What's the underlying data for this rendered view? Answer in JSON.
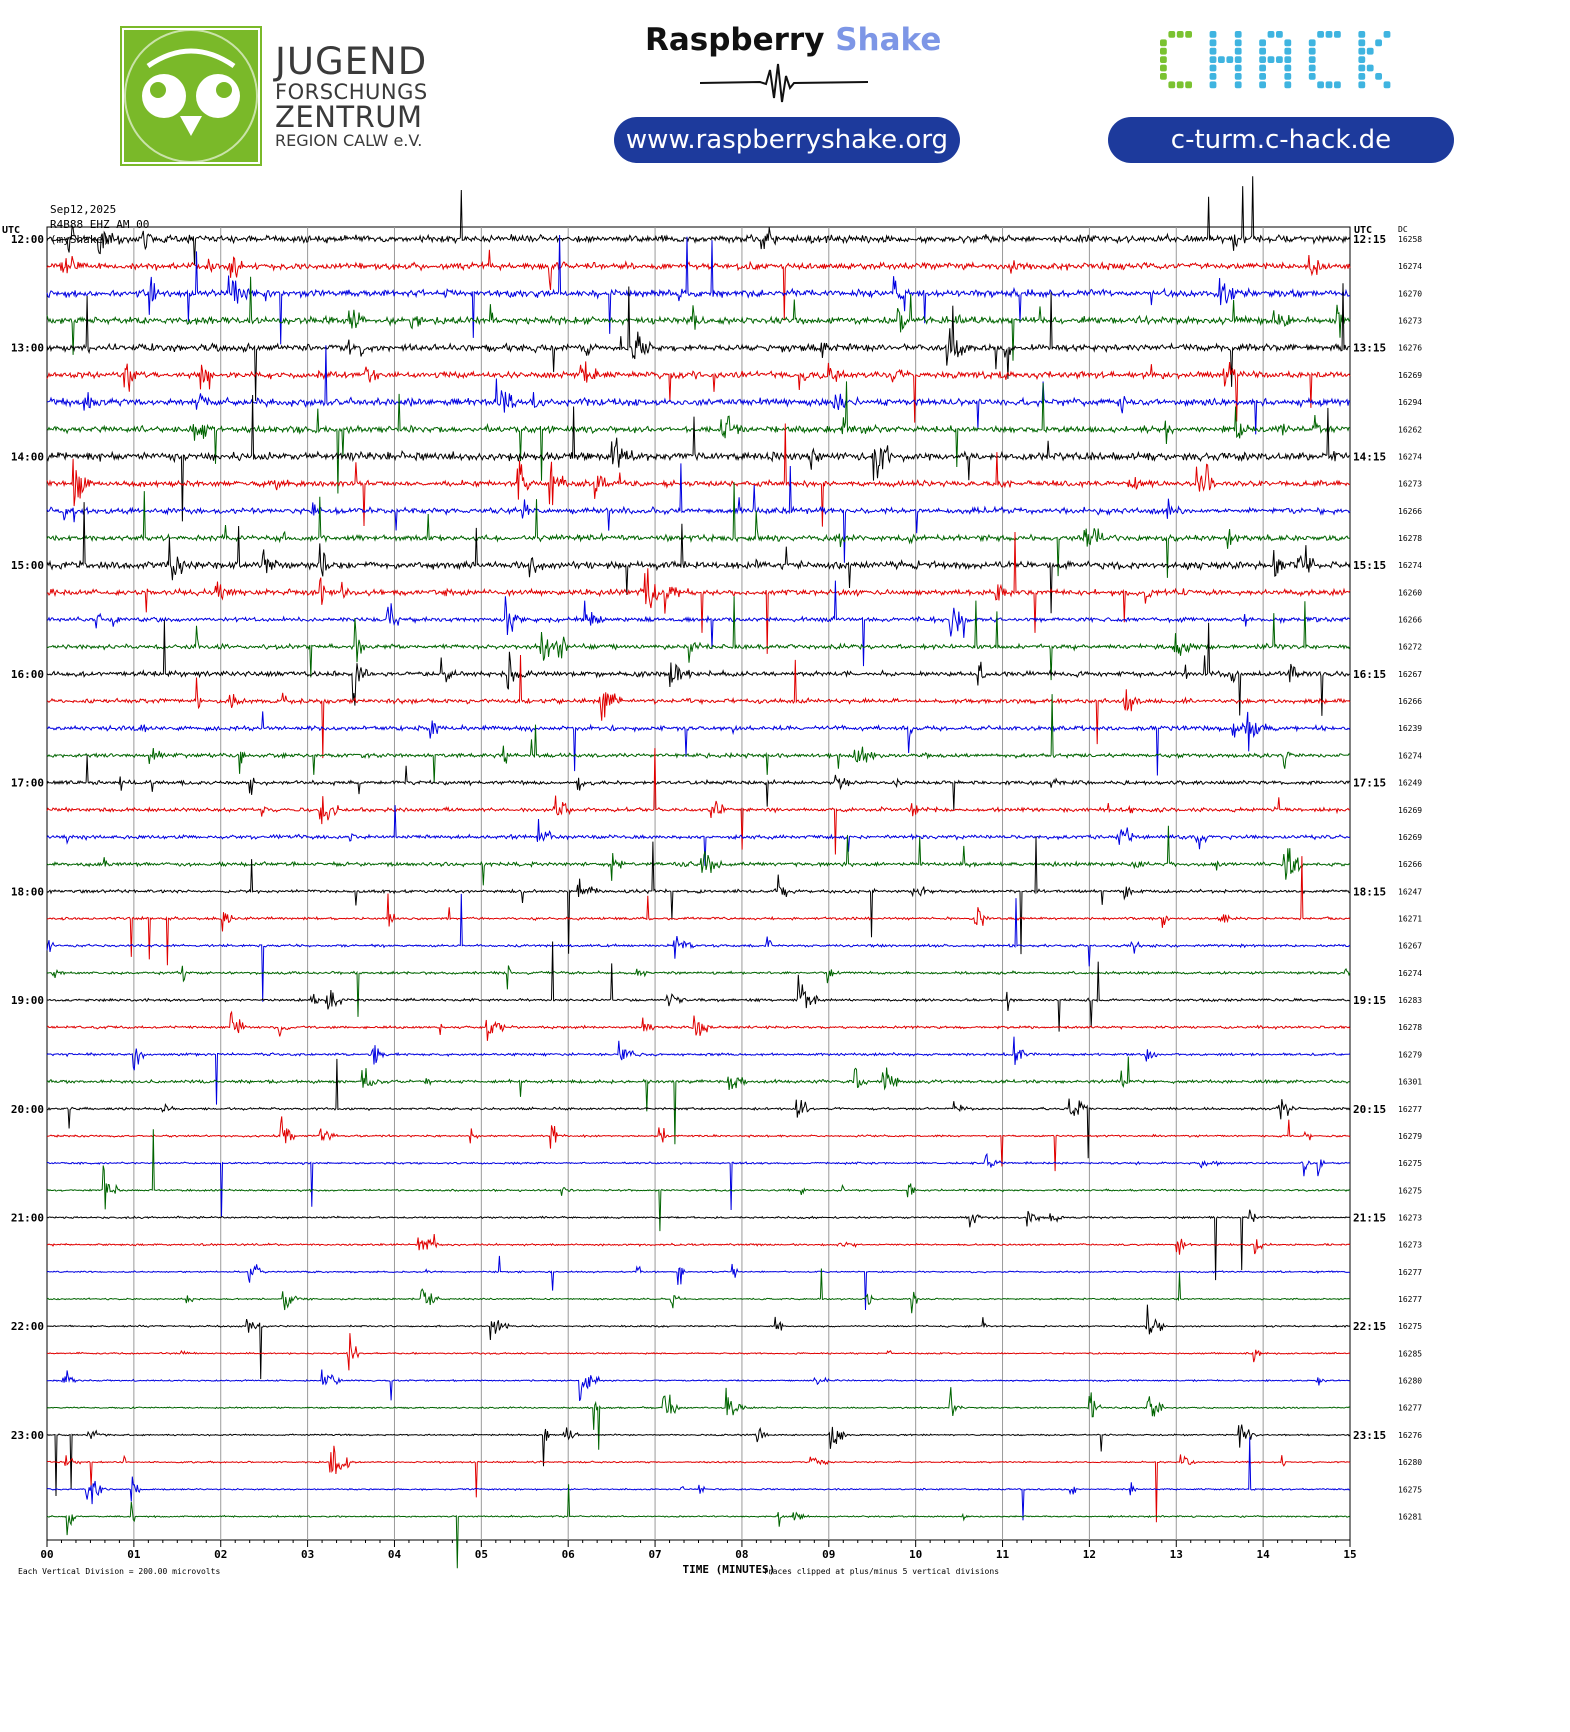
{
  "header": {
    "jfz": {
      "line1": "JUGEND",
      "line2": "FORSCHUNGS",
      "line3": "ZENTRUM",
      "line4": "REGION CALW e.V.",
      "brand_color": "#7ab929"
    },
    "raspberry_shake": {
      "word1": "Raspberry",
      "word2": "Shake",
      "url": "www.raspberryshake.org",
      "accent_color": "#7d96e6"
    },
    "chack": {
      "logo_text": "CHACK",
      "url": "c-turm.c-hack.de",
      "green": "#7ac230",
      "blue": "#3fb4e0"
    },
    "pill_color": "#1d3a9c"
  },
  "meta": {
    "date": "Sep12,2025",
    "station": "R4B88 EHZ AM 00",
    "network": "(myShake)"
  },
  "chart_data": {
    "type": "helicorder",
    "title": "",
    "xlabel": "TIME (MINUTES)",
    "x_range": [
      0,
      15
    ],
    "x_ticks": [
      "00",
      "01",
      "02",
      "03",
      "04",
      "05",
      "06",
      "07",
      "08",
      "09",
      "10",
      "11",
      "12",
      "13",
      "14",
      "15"
    ],
    "left_axis_label": "UTC",
    "right_axis_label": "UTC",
    "dc_label": "DC",
    "trace_interval_minutes": 15,
    "left_hour_labels": [
      "12:00",
      "13:00",
      "14:00",
      "15:00",
      "16:00",
      "17:00",
      "18:00",
      "19:00",
      "20:00",
      "21:00",
      "22:00",
      "23:00"
    ],
    "right_hour_labels": [
      "12:15",
      "13:15",
      "14:15",
      "15:15",
      "16:15",
      "17:15",
      "18:15",
      "19:15",
      "20:15",
      "21:15",
      "22:15",
      "23:15"
    ],
    "trace_colors": [
      "#000000",
      "#e00000",
      "#0000e0",
      "#006400"
    ],
    "dc_offsets": [
      16258,
      16274,
      16270,
      16273,
      16276,
      16269,
      16294,
      16262,
      16274,
      16273,
      16266,
      16278,
      16274,
      16260,
      16266,
      16272,
      16267,
      16266,
      16239,
      16274,
      16249,
      16269,
      16269,
      16266,
      16247,
      16271,
      16267,
      16274,
      16283,
      16278,
      16279,
      16301,
      16277,
      16279,
      16275,
      16275,
      16273,
      16273,
      16277,
      16277,
      16275,
      16285,
      16280,
      16277,
      16276,
      16280,
      16275,
      16281
    ],
    "noise_level": [
      0.55,
      0.5,
      0.55,
      0.55,
      0.55,
      0.5,
      0.55,
      0.5,
      0.6,
      0.45,
      0.45,
      0.45,
      0.55,
      0.45,
      0.35,
      0.35,
      0.4,
      0.35,
      0.35,
      0.3,
      0.3,
      0.3,
      0.3,
      0.3,
      0.25,
      0.2,
      0.2,
      0.2,
      0.2,
      0.2,
      0.2,
      0.25,
      0.18,
      0.15,
      0.15,
      0.15,
      0.15,
      0.15,
      0.12,
      0.12,
      0.12,
      0.12,
      0.12,
      0.12,
      0.12,
      0.12,
      0.12,
      0.12
    ],
    "footer_left": "Each Vertical Division =  200.00 microvolts",
    "footer_right": "Traces clipped at plus/minus 5 vertical divisions"
  }
}
